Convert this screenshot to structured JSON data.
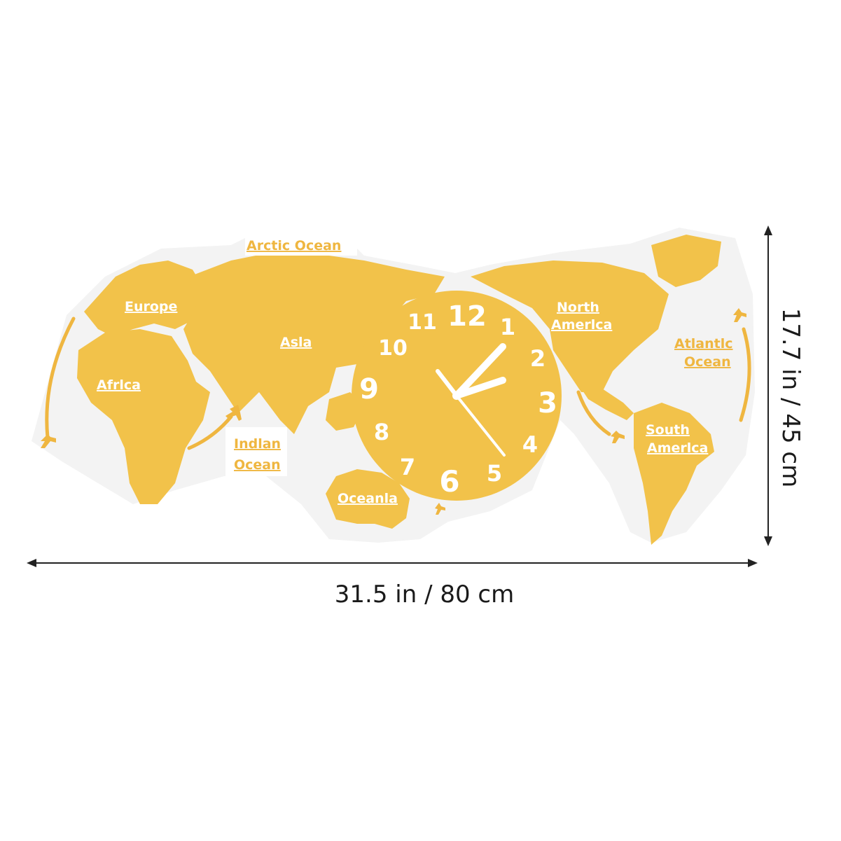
{
  "colors": {
    "gold": "#f2c24a",
    "gold_dark": "#e7ad2a",
    "backing": "#f3f3f3",
    "label_gold": "#efb640",
    "arrow": "#222222",
    "text": "#1a1a1a"
  },
  "labels": {
    "arctic": "Arctic Ocean",
    "europe": "Europe",
    "asia": "Asla",
    "africa": "Afrlca",
    "indian_1": "Indlan",
    "indian_2": "Ocean",
    "oceania": "Oceanla",
    "north_america_1": "North",
    "north_america_2": "Amerlca",
    "atlantic_1": "Atlantlc",
    "atlantic_2": "Ocean",
    "south_america_1": "South",
    "south_america_2": "Amerlca"
  },
  "clock": {
    "numerals": [
      "12",
      "1",
      "2",
      "3",
      "4",
      "5",
      "6",
      "7",
      "8",
      "9",
      "10",
      "11"
    ]
  },
  "dimensions": {
    "width": "31.5 in / 80 cm",
    "height": "17.7 in / 45 cm"
  },
  "icons": [
    "airplane-icon",
    "clock-hands-icon"
  ]
}
